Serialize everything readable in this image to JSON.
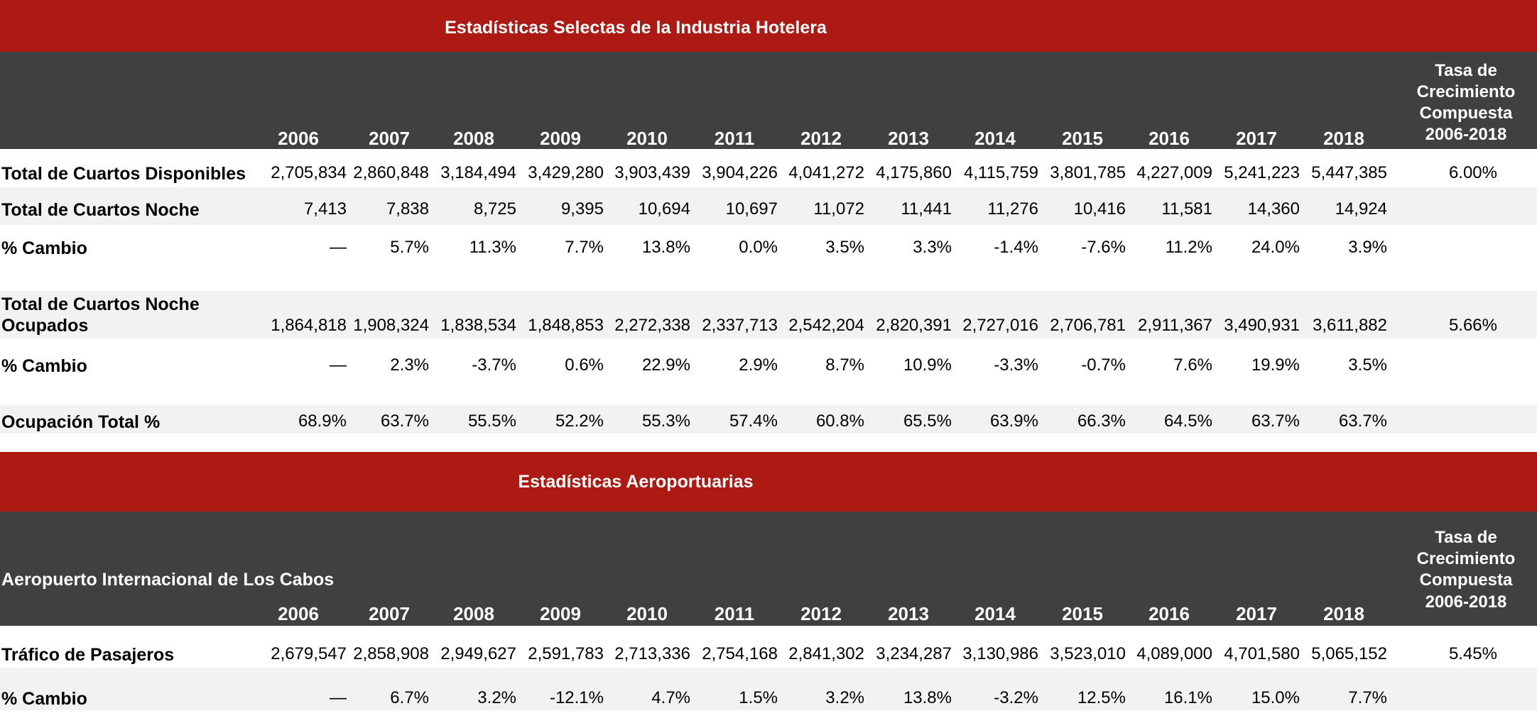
{
  "hotel": {
    "title": "Estadísticas Selectas de la Industria Hotelera",
    "years": [
      "2006",
      "2007",
      "2008",
      "2009",
      "2010",
      "2011",
      "2012",
      "2013",
      "2014",
      "2015",
      "2016",
      "2017",
      "2018"
    ],
    "cagr_header": [
      "Tasa de",
      "Crecimiento",
      "Compuesta",
      "2006-2018"
    ],
    "rows": [
      {
        "label": "Total de Cuartos Disponibles",
        "values": [
          "2,705,834",
          "2,860,848",
          "3,184,494",
          "3,429,280",
          "3,903,439",
          "3,904,226",
          "4,041,272",
          "4,175,860",
          "4,115,759",
          "3,801,785",
          "4,227,009",
          "5,241,223",
          "5,447,385"
        ],
        "cagr": "6.00%"
      },
      {
        "label": "Total de Cuartos Noche",
        "values": [
          "7,413",
          "7,838",
          "8,725",
          "9,395",
          "10,694",
          "10,697",
          "11,072",
          "11,441",
          "11,276",
          "10,416",
          "11,581",
          "14,360",
          "14,924"
        ],
        "cagr": ""
      },
      {
        "label": "% Cambio",
        "values": [
          "—",
          "5.7%",
          "11.3%",
          "7.7%",
          "13.8%",
          "0.0%",
          "3.5%",
          "3.3%",
          "-1.4%",
          "-7.6%",
          "11.2%",
          "24.0%",
          "3.9%"
        ],
        "cagr": ""
      },
      {
        "label_line1": "Total de Cuartos Noche",
        "label_line2": "Ocupados",
        "values": [
          "1,864,818",
          "1,908,324",
          "1,838,534",
          "1,848,853",
          "2,272,338",
          "2,337,713",
          "2,542,204",
          "2,820,391",
          "2,727,016",
          "2,706,781",
          "2,911,367",
          "3,490,931",
          "3,611,882"
        ],
        "cagr": "5.66%"
      },
      {
        "label": "% Cambio",
        "values": [
          "—",
          "2.3%",
          "-3.7%",
          "0.6%",
          "22.9%",
          "2.9%",
          "8.7%",
          "10.9%",
          "-3.3%",
          "-0.7%",
          "7.6%",
          "19.9%",
          "3.5%"
        ],
        "cagr": ""
      },
      {
        "label": "Ocupación Total %",
        "values": [
          "68.9%",
          "63.7%",
          "55.5%",
          "52.2%",
          "55.3%",
          "57.4%",
          "60.8%",
          "65.5%",
          "63.9%",
          "66.3%",
          "64.5%",
          "63.7%",
          "63.7%"
        ],
        "cagr": ""
      }
    ]
  },
  "airport": {
    "title": "Estadísticas Aeroportuarias",
    "subtitle": "Aeropuerto Internacional de Los Cabos",
    "years": [
      "2006",
      "2007",
      "2008",
      "2009",
      "2010",
      "2011",
      "2012",
      "2013",
      "2014",
      "2015",
      "2016",
      "2017",
      "2018"
    ],
    "cagr_header": [
      "Tasa de",
      "Crecimiento",
      "Compuesta",
      "2006-2018"
    ],
    "rows": [
      {
        "label": "Tráfico de Pasajeros",
        "values": [
          "2,679,547",
          "2,858,908",
          "2,949,627",
          "2,591,783",
          "2,713,336",
          "2,754,168",
          "2,841,302",
          "3,234,287",
          "3,130,986",
          "3,523,010",
          "4,089,000",
          "4,701,580",
          "5,065,152"
        ],
        "cagr": "5.45%"
      },
      {
        "label": "% Cambio",
        "values": [
          "—",
          "6.7%",
          "3.2%",
          "-12.1%",
          "4.7%",
          "1.5%",
          "3.2%",
          "13.8%",
          "-3.2%",
          "12.5%",
          "16.1%",
          "15.0%",
          "7.7%"
        ],
        "cagr": ""
      }
    ]
  },
  "colors": {
    "band": "#ad1a14",
    "header": "#404040",
    "stripe": "#f2f2f2"
  }
}
